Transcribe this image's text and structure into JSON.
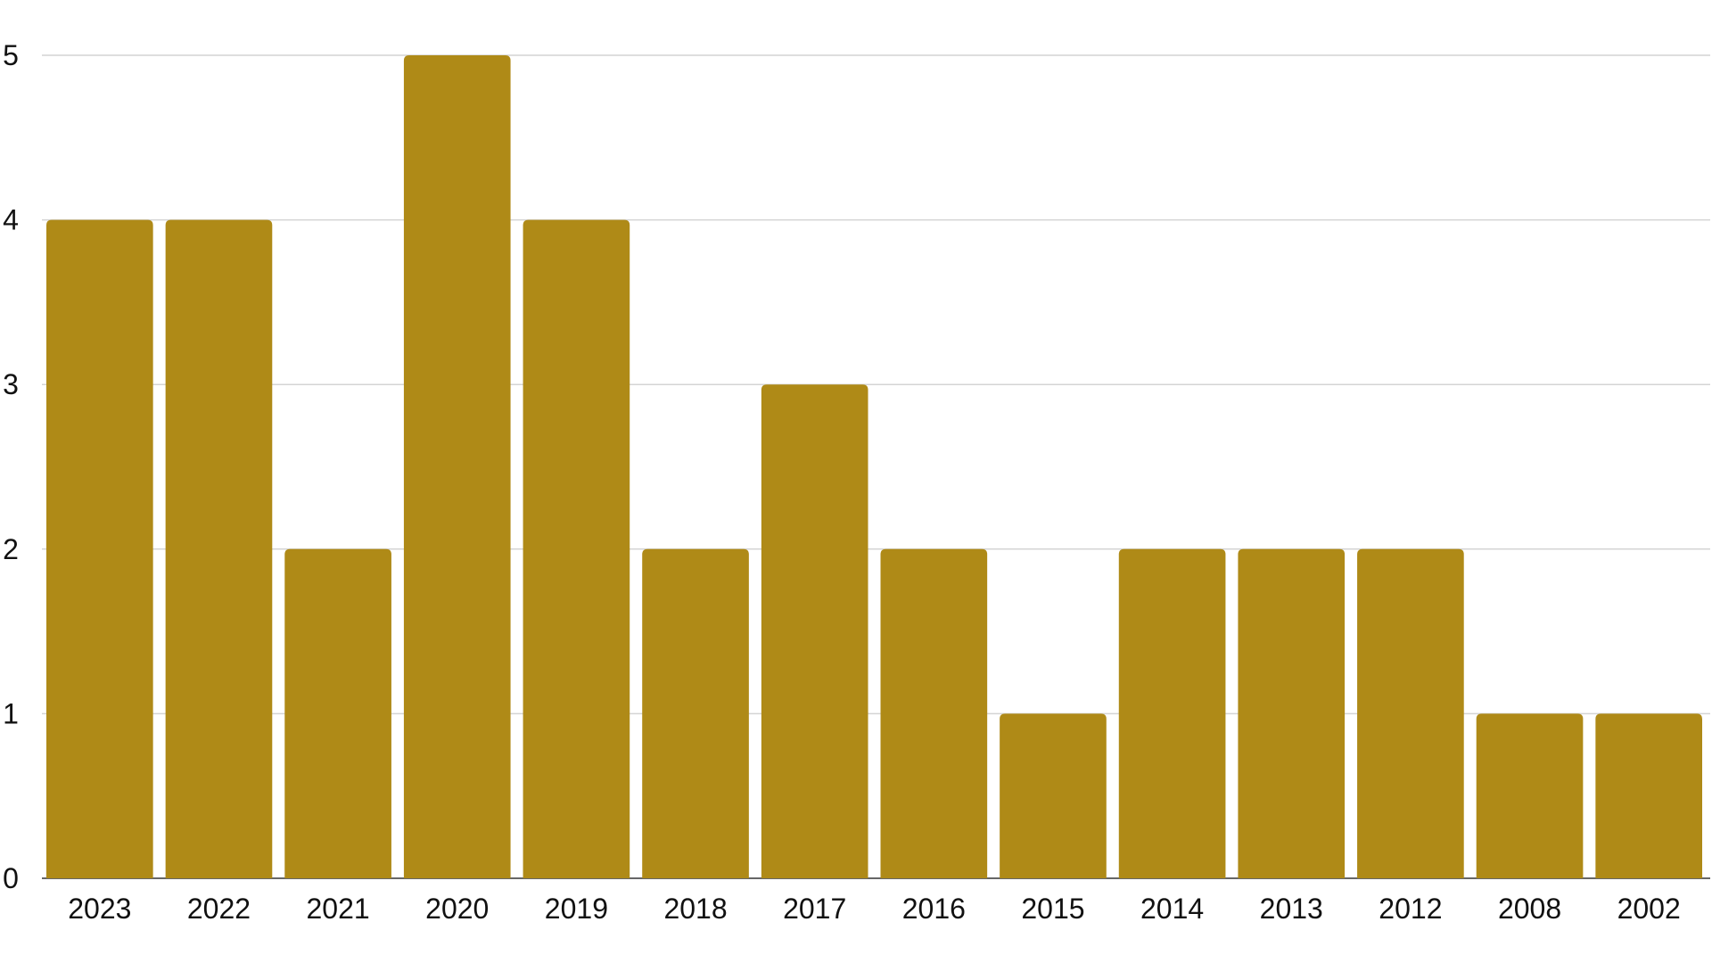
{
  "chart_data": {
    "type": "bar",
    "title": "",
    "xlabel": "",
    "ylabel": "",
    "categories": [
      "2023",
      "2022",
      "2021",
      "2020",
      "2019",
      "2018",
      "2017",
      "2016",
      "2015",
      "2014",
      "2013",
      "2012",
      "2008",
      "2002"
    ],
    "values": [
      4,
      4,
      2,
      5,
      4,
      2,
      3,
      2,
      1,
      2,
      2,
      2,
      1,
      1
    ],
    "ylim": [
      0,
      5
    ],
    "yticks": [
      "0",
      "1",
      "2",
      "3",
      "4",
      "5"
    ],
    "grid": true,
    "legend": "none",
    "bar_color": "#AF8A17",
    "grid_color": "#D4D4D4"
  }
}
